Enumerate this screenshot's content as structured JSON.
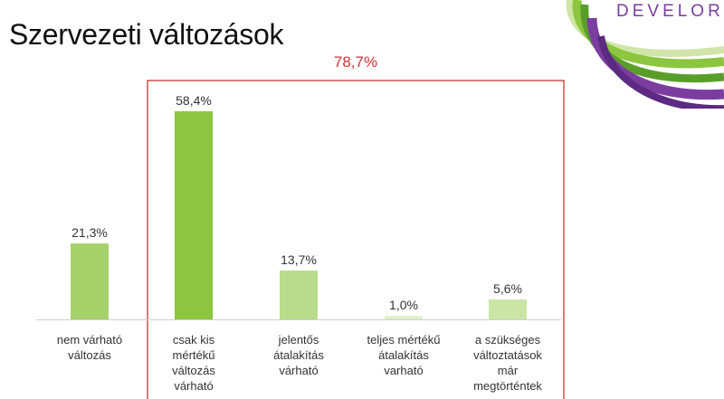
{
  "slide": {
    "title": "Szervezeti változások",
    "logo_text": "DEVELOR"
  },
  "colors": {
    "group_box": "#cc3333",
    "axis": "#d0d0d0",
    "logo_green": "#8cc63f",
    "logo_purple": "#7b3ea0"
  },
  "chart_data": {
    "type": "bar",
    "categories": [
      [
        "nem várható",
        "változás"
      ],
      [
        "csak kis",
        "mértékű",
        "változás",
        "várható"
      ],
      [
        "jelentős",
        "átalakítás",
        "várható"
      ],
      [
        "teljes mértékű",
        "átalakítás",
        "varható"
      ],
      [
        "a szükséges",
        "változtatások",
        "már",
        "megtörténtek"
      ]
    ],
    "values": [
      21.3,
      58.4,
      13.7,
      1.0,
      5.6
    ],
    "value_labels": [
      "21,3%",
      "58,4%",
      "13,7%",
      "1,0%",
      "5,6%"
    ],
    "bar_colors": [
      "#a6d06a",
      "#8cc63f",
      "#b8dc8a",
      "#e0efcd",
      "#c9e6a6"
    ],
    "group_annotation": {
      "label": "78,7%",
      "covers_categories": [
        1,
        2,
        3,
        4
      ]
    },
    "ylim": [
      0,
      60
    ],
    "grid": false,
    "legend": "none"
  }
}
